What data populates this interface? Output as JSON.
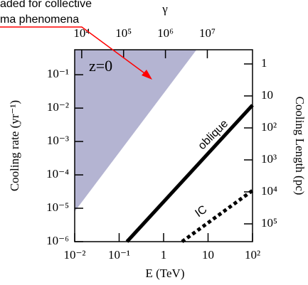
{
  "chart_data": {
    "type": "line",
    "xlabel": "E (TeV)",
    "ylabel": "Cooling rate (yr⁻¹)",
    "y2label": "Cooling Length (pc)",
    "x2label": "γ",
    "log_scale": true,
    "xlim": [
      0.01,
      100
    ],
    "xticks": [
      {
        "value": 0.01,
        "label": "10⁻²"
      },
      {
        "value": 0.1,
        "label": "10⁻¹"
      },
      1,
      10,
      {
        "value": 100,
        "label": "10²"
      }
    ],
    "ylim": [
      1e-06,
      0.56
    ],
    "yticks": [
      {
        "value": 1e-06,
        "label": "10⁻⁶"
      },
      {
        "value": 1e-05,
        "label": "10⁻⁵"
      },
      {
        "value": 0.0001,
        "label": "10⁻⁴"
      },
      {
        "value": 0.001,
        "label": "10⁻³"
      },
      {
        "value": 0.01,
        "label": "10⁻²"
      },
      {
        "value": 0.1,
        "label": "10⁻¹"
      }
    ],
    "x2lim": [
      6800,
      120000000
    ],
    "x2ticks": [
      {
        "value": 10000,
        "label": "10⁴"
      },
      {
        "value": 100000,
        "label": "10⁵"
      },
      {
        "value": 1000000,
        "label": "10⁶"
      },
      {
        "value": 10000000,
        "label": "10⁷"
      }
    ],
    "y2lim": [
      360000,
      0.36
    ],
    "y2ticks": [
      1,
      10,
      {
        "value": 100,
        "label": "10²"
      },
      {
        "value": 1000,
        "label": "10³"
      },
      {
        "value": 10000,
        "label": "10⁴"
      },
      {
        "value": 100000,
        "label": "10⁵"
      }
    ],
    "series": [
      {
        "name": "oblique",
        "color": "#000000",
        "style": "solid",
        "x": [
          0.15,
          100
        ],
        "values": [
          1e-06,
          0.0123
        ]
      },
      {
        "name": "IC",
        "color": "#000000",
        "style": "dotted",
        "x": [
          2.6,
          100
        ],
        "values": [
          1e-06,
          3.4e-05
        ]
      }
    ],
    "label_color": "#ff0000",
    "shaded_region": {
      "color": "#b4b4d2",
      "x": [
        0.01,
        5.5
      ],
      "values": [
        8e-06,
        0.56
      ]
    },
    "annotations": [
      "z=0",
      "aded for collective",
      "ma phenomena"
    ]
  }
}
